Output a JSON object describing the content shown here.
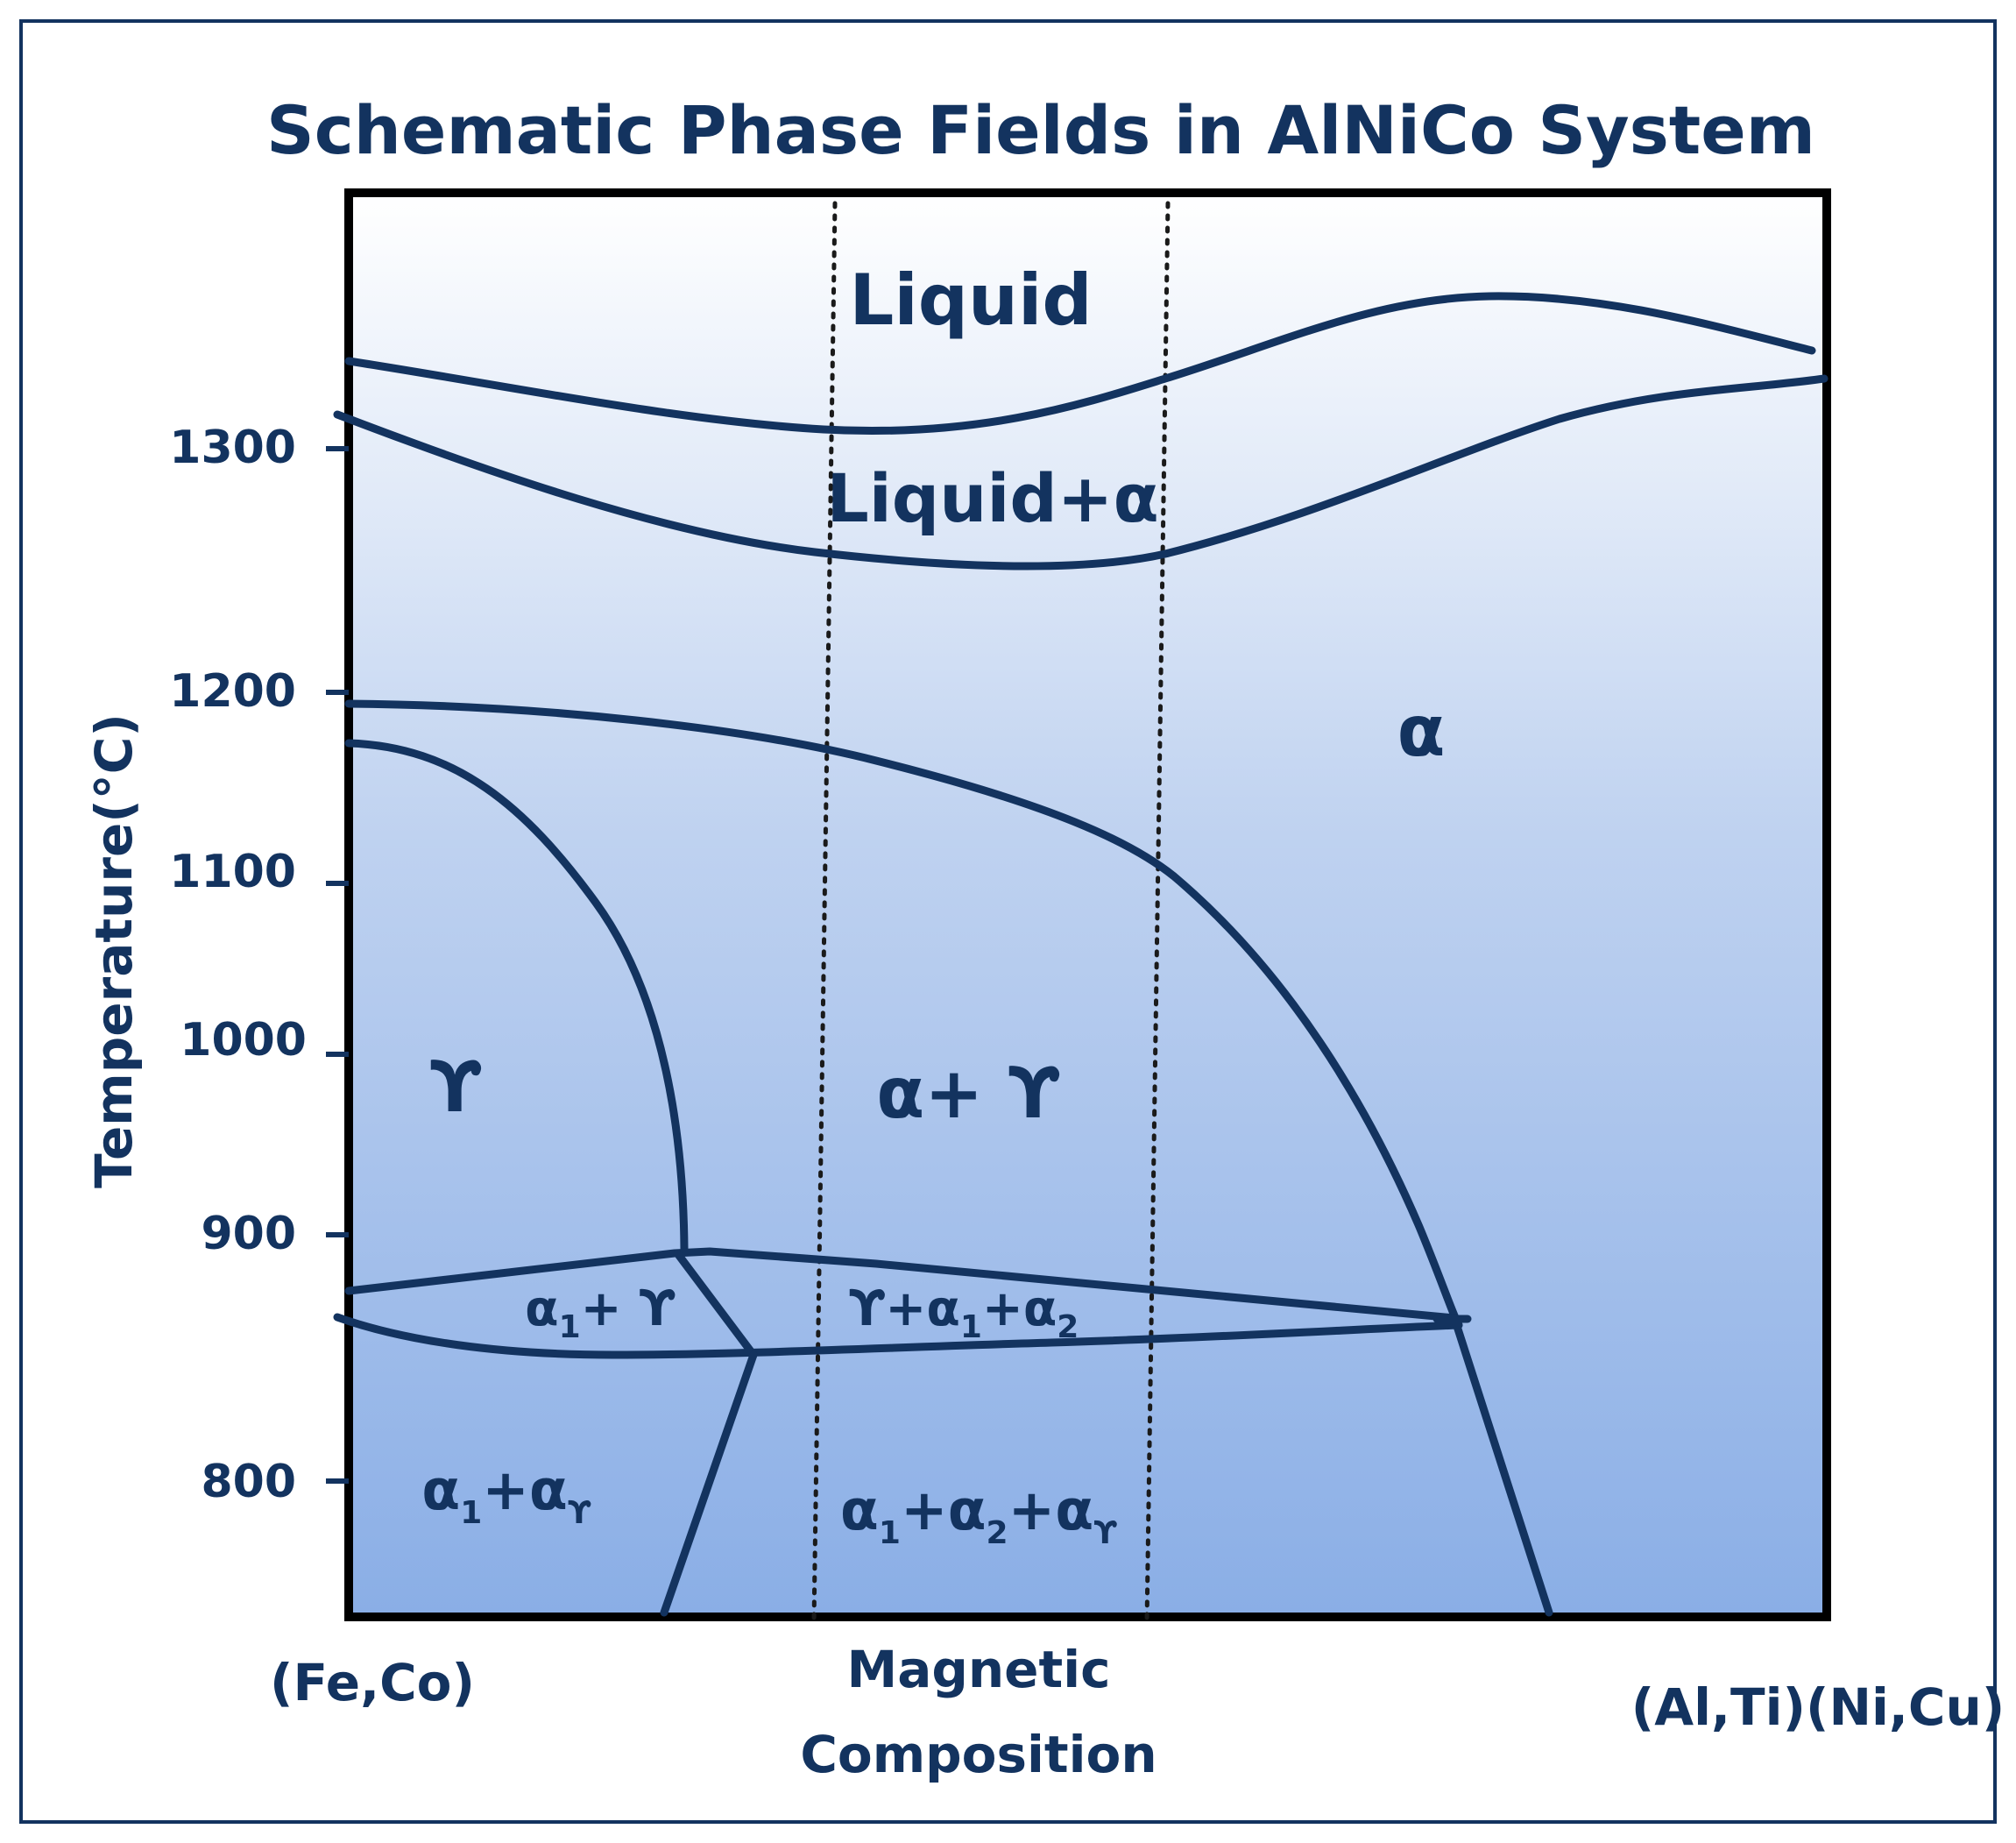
{
  "title": "Schematic Phase Fields in AlNiCo System",
  "y_axis": {
    "label": "Temperature(°C)",
    "ticks": [
      "1300",
      "1200",
      "1100",
      "1000",
      "900",
      "800"
    ]
  },
  "x_axis": {
    "left_label": "(Fe,Co)",
    "center_label_line1": "Magnetic",
    "center_label_line2": "Composition",
    "right_label": "(Al,Ti)(Ni,Cu)"
  },
  "regions": {
    "liquid": "Liquid",
    "liquid_alpha": "Liquid+α",
    "alpha": "α",
    "gamma": "ϒ",
    "alpha_gamma": "α+ ϒ",
    "alpha1_gamma": {
      "a": "α",
      "s1": "1",
      "b": "+ ϒ"
    },
    "gamma_alpha1_alpha2": {
      "a": "ϒ+α",
      "s1": "1",
      "b": "+α",
      "s2": "2"
    },
    "alpha1_alphagamma": {
      "a": "α",
      "s1": "1",
      "b": "+α",
      "s2": "ϒ"
    },
    "alpha1_alpha2_alphagamma": {
      "a": "α",
      "s1": "1",
      "b": "+α",
      "s2": "2",
      "c": "+α",
      "s3": "ϒ"
    }
  },
  "colors": {
    "ink": "#13335f",
    "background_top": "#ffffff",
    "background_bottom": "#8aaee6",
    "dotted_lines": "#1a1a1a"
  }
}
